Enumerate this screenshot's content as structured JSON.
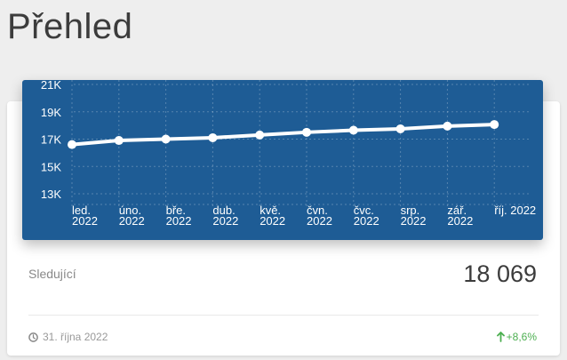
{
  "page": {
    "title": "Přehled"
  },
  "stat": {
    "label": "Sledující",
    "value": "18 069"
  },
  "footer": {
    "date": "31. října 2022",
    "change": "+8,6%",
    "change_color": "#4caf50",
    "clock_icon": "clock-icon",
    "arrow_icon": "arrow-up-icon"
  },
  "colors": {
    "chart_bg": "#1e5c95",
    "line": "#ffffff",
    "grid": "rgba(255,255,255,0.25)"
  },
  "chart_data": {
    "type": "line",
    "title": "",
    "xlabel": "",
    "ylabel": "",
    "ylim": [
      12000,
      21500
    ],
    "y_ticks": [
      {
        "value": 13000,
        "label": "13K"
      },
      {
        "value": 15000,
        "label": "15K"
      },
      {
        "value": 17000,
        "label": "17K"
      },
      {
        "value": 19000,
        "label": "19K"
      },
      {
        "value": 21000,
        "label": "21K"
      }
    ],
    "categories": [
      [
        "led.",
        "2022"
      ],
      [
        "úno.",
        "2022"
      ],
      [
        "bře.",
        "2022"
      ],
      [
        "dub.",
        "2022"
      ],
      [
        "kvě.",
        "2022"
      ],
      [
        "čvn.",
        "2022"
      ],
      [
        "čvc.",
        "2022"
      ],
      [
        "srp.",
        "2022"
      ],
      [
        "zář.",
        "2022"
      ],
      [
        "říj. 2022"
      ]
    ],
    "values": [
      16600,
      16900,
      17000,
      17100,
      17300,
      17500,
      17650,
      17750,
      17950,
      18069
    ],
    "grid": true,
    "legend": "none"
  }
}
